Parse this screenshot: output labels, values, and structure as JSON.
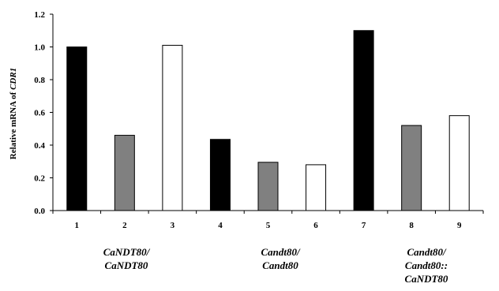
{
  "chart_data": {
    "type": "bar",
    "categories": [
      "1",
      "2",
      "3",
      "4",
      "5",
      "6",
      "7",
      "8",
      "9"
    ],
    "values": [
      1.0,
      0.46,
      1.01,
      0.435,
      0.295,
      0.28,
      1.1,
      0.52,
      0.58
    ],
    "bar_colors": [
      "#000000",
      "#808080",
      "#ffffff",
      "#000000",
      "#808080",
      "#ffffff",
      "#000000",
      "#808080",
      "#ffffff"
    ],
    "ylabel_prefix": "Relative mRNA of ",
    "ylabel_gene": "CDR1",
    "ylim": [
      0,
      1.2
    ],
    "yticks": [
      "0.0",
      "0.2",
      "0.4",
      "0.6",
      "0.8",
      "1.0",
      "1.2"
    ],
    "groups": [
      {
        "lines": [
          "CaNDT80/",
          "CaNDT80"
        ]
      },
      {
        "lines": [
          "Candt80/",
          "Candt80"
        ]
      },
      {
        "lines": [
          "Candt80/",
          "Candt80::",
          "CaNDT80"
        ]
      }
    ],
    "grid": false
  }
}
